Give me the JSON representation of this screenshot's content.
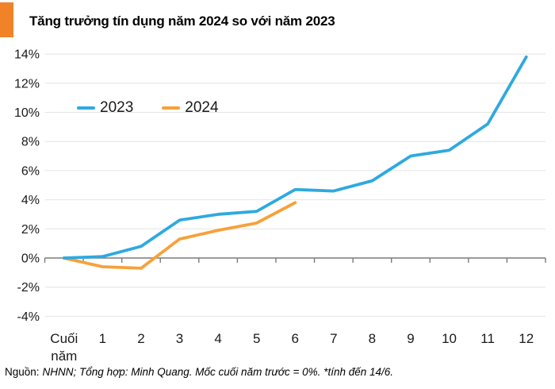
{
  "colors": {
    "accent_bar": "#F08227",
    "grid": "#E4E4E4",
    "axis": "#7B7B7B",
    "text": "#1A1A1A"
  },
  "chart_data": {
    "type": "line",
    "title": "Tăng trưởng tín dụng năm 2024 so với năm 2023",
    "categories": [
      "Cuối năm",
      "1",
      "2",
      "3",
      "4",
      "5",
      "6",
      "7",
      "8",
      "9",
      "10",
      "11",
      "12"
    ],
    "y_ticks": [
      14,
      12,
      10,
      8,
      6,
      4,
      2,
      0,
      -2,
      -4
    ],
    "y_tick_suffix": "%",
    "ylim": [
      -4,
      14
    ],
    "grid": true,
    "legend_position": "inside-top-left",
    "xlabel": "",
    "ylabel": "",
    "series": [
      {
        "name": "2023",
        "color": "#2EA9E0",
        "values": [
          0,
          0.1,
          0.8,
          2.6,
          3.0,
          3.2,
          4.7,
          4.6,
          5.3,
          7.0,
          7.4,
          9.2,
          13.8
        ]
      },
      {
        "name": "2024",
        "color": "#F7A139",
        "values": [
          0,
          -0.6,
          -0.7,
          1.3,
          1.9,
          2.4,
          3.8
        ]
      }
    ]
  },
  "footer": {
    "prefix": "Nguồn:",
    "note": "NHNN; Tổng hợp: Minh Quang. Mốc cuối năm trước = 0%. *tính đến 14/6."
  }
}
